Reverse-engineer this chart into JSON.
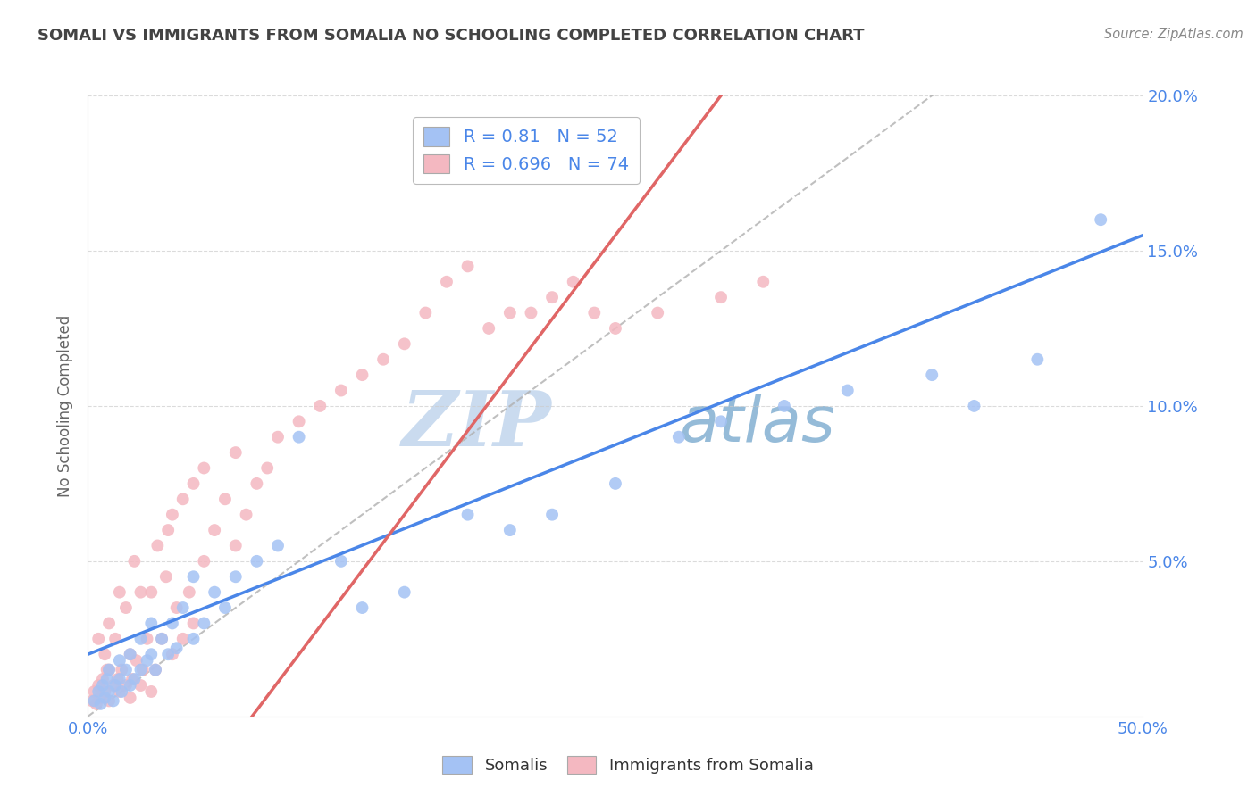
{
  "title": "SOMALI VS IMMIGRANTS FROM SOMALIA NO SCHOOLING COMPLETED CORRELATION CHART",
  "source": "Source: ZipAtlas.com",
  "ylabel": "No Schooling Completed",
  "xlim": [
    0,
    0.5
  ],
  "ylim": [
    0,
    0.2
  ],
  "xtick_positions": [
    0.0,
    0.05,
    0.1,
    0.15,
    0.2,
    0.25,
    0.3,
    0.35,
    0.4,
    0.45,
    0.5
  ],
  "xtick_labels": [
    "0.0%",
    "",
    "",
    "",
    "",
    "",
    "",
    "",
    "",
    "",
    "50.0%"
  ],
  "ytick_positions": [
    0.0,
    0.05,
    0.1,
    0.15,
    0.2
  ],
  "ytick_labels": [
    "",
    "5.0%",
    "10.0%",
    "15.0%",
    "20.0%"
  ],
  "blue_R": 0.81,
  "blue_N": 52,
  "pink_R": 0.696,
  "pink_N": 74,
  "blue_color": "#a4c2f4",
  "pink_color": "#f4b8c1",
  "blue_line_color": "#4a86e8",
  "pink_line_color": "#e06666",
  "legend_label_blue": "Somalis",
  "legend_label_pink": "Immigrants from Somalia",
  "watermark_zip": "ZIP",
  "watermark_atlas": "atlas",
  "watermark_color": "#b8d0e8",
  "background_color": "#ffffff",
  "grid_color": "#cccccc",
  "title_color": "#434343",
  "axis_label_color": "#666666",
  "tick_color": "#4a86e8",
  "blue_line_intercept": 0.02,
  "blue_line_slope": 0.27,
  "pink_line_intercept": -0.07,
  "pink_line_slope": 0.9,
  "blue_scatter_x": [
    0.003,
    0.005,
    0.006,
    0.007,
    0.008,
    0.009,
    0.01,
    0.01,
    0.012,
    0.013,
    0.015,
    0.015,
    0.016,
    0.018,
    0.02,
    0.02,
    0.022,
    0.025,
    0.025,
    0.028,
    0.03,
    0.03,
    0.032,
    0.035,
    0.038,
    0.04,
    0.042,
    0.045,
    0.05,
    0.05,
    0.055,
    0.06,
    0.065,
    0.07,
    0.08,
    0.09,
    0.1,
    0.12,
    0.13,
    0.15,
    0.18,
    0.2,
    0.22,
    0.25,
    0.28,
    0.3,
    0.33,
    0.36,
    0.4,
    0.42,
    0.45,
    0.48
  ],
  "blue_scatter_y": [
    0.005,
    0.008,
    0.004,
    0.01,
    0.006,
    0.012,
    0.008,
    0.015,
    0.005,
    0.01,
    0.012,
    0.018,
    0.008,
    0.015,
    0.01,
    0.02,
    0.012,
    0.015,
    0.025,
    0.018,
    0.02,
    0.03,
    0.015,
    0.025,
    0.02,
    0.03,
    0.022,
    0.035,
    0.025,
    0.045,
    0.03,
    0.04,
    0.035,
    0.045,
    0.05,
    0.055,
    0.09,
    0.05,
    0.035,
    0.04,
    0.065,
    0.06,
    0.065,
    0.075,
    0.09,
    0.095,
    0.1,
    0.105,
    0.11,
    0.1,
    0.115,
    0.16
  ],
  "pink_scatter_x": [
    0.002,
    0.003,
    0.004,
    0.005,
    0.005,
    0.006,
    0.007,
    0.008,
    0.008,
    0.009,
    0.01,
    0.01,
    0.01,
    0.012,
    0.013,
    0.014,
    0.015,
    0.015,
    0.016,
    0.018,
    0.018,
    0.02,
    0.02,
    0.021,
    0.022,
    0.023,
    0.025,
    0.025,
    0.026,
    0.028,
    0.03,
    0.03,
    0.032,
    0.033,
    0.035,
    0.037,
    0.038,
    0.04,
    0.04,
    0.042,
    0.045,
    0.045,
    0.048,
    0.05,
    0.05,
    0.055,
    0.055,
    0.06,
    0.065,
    0.07,
    0.07,
    0.075,
    0.08,
    0.085,
    0.09,
    0.1,
    0.11,
    0.12,
    0.13,
    0.14,
    0.15,
    0.16,
    0.17,
    0.18,
    0.19,
    0.2,
    0.21,
    0.22,
    0.23,
    0.24,
    0.25,
    0.27,
    0.3,
    0.32
  ],
  "pink_scatter_y": [
    0.005,
    0.008,
    0.004,
    0.01,
    0.025,
    0.006,
    0.012,
    0.008,
    0.02,
    0.015,
    0.005,
    0.015,
    0.03,
    0.01,
    0.025,
    0.012,
    0.008,
    0.04,
    0.015,
    0.01,
    0.035,
    0.006,
    0.02,
    0.012,
    0.05,
    0.018,
    0.01,
    0.04,
    0.015,
    0.025,
    0.008,
    0.04,
    0.015,
    0.055,
    0.025,
    0.045,
    0.06,
    0.02,
    0.065,
    0.035,
    0.025,
    0.07,
    0.04,
    0.03,
    0.075,
    0.05,
    0.08,
    0.06,
    0.07,
    0.055,
    0.085,
    0.065,
    0.075,
    0.08,
    0.09,
    0.095,
    0.1,
    0.105,
    0.11,
    0.115,
    0.12,
    0.13,
    0.14,
    0.145,
    0.125,
    0.13,
    0.13,
    0.135,
    0.14,
    0.13,
    0.125,
    0.13,
    0.135,
    0.14
  ]
}
